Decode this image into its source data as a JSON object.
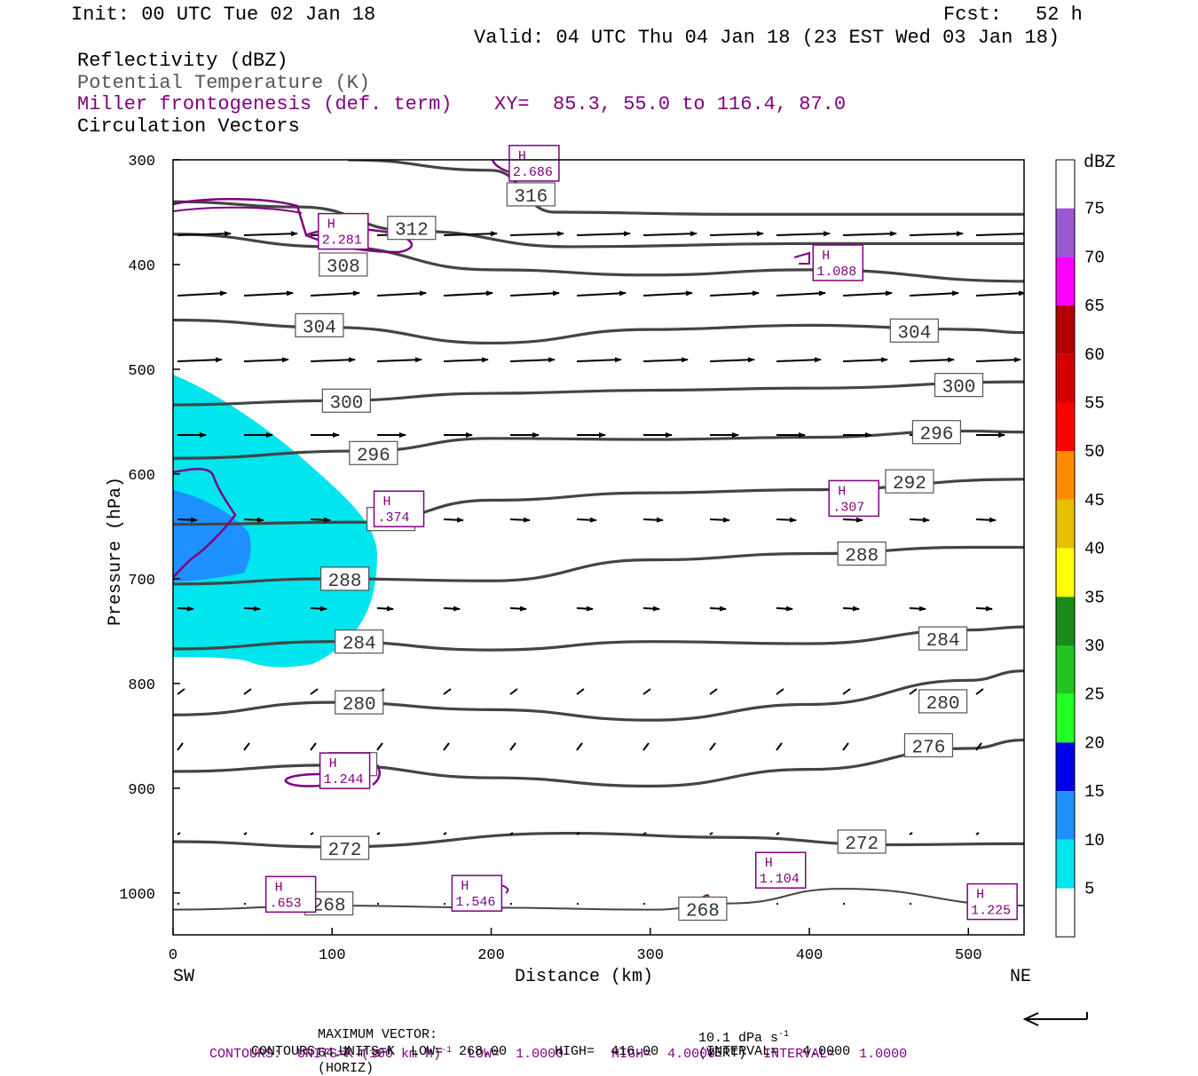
{
  "header": {
    "init": "Init: 00 UTC Tue 02 Jan 18",
    "fcst_label": "Fcst:",
    "fcst_value": "52 h",
    "valid": "Valid: 04 UTC Thu 04 Jan 18 (23 EST Wed 03 Jan 18)",
    "fields": {
      "reflectivity": "Reflectivity (dBZ)",
      "theta": "Potential Temperature (K)",
      "miller": "Miller frontogenesis (def. term)",
      "xy": "XY=  85.3, 55.0 to 116.4, 87.0",
      "vectors": "Circulation Vectors"
    }
  },
  "colors": {
    "purple": "#800080",
    "theta_line": "#444444",
    "reflectivity_5": "#00e5ee",
    "reflectivity_10": "#1e90ff"
  },
  "chart_data": {
    "type": "cross-section",
    "xlabel": "Distance (km)",
    "ylabel": "Pressure (hPa)",
    "xlim": [
      0,
      535
    ],
    "ylim": [
      1040,
      300
    ],
    "x_ticks": [
      "0",
      "100",
      "200",
      "300",
      "400",
      "500"
    ],
    "y_ticks": [
      "300",
      "400",
      "500",
      "600",
      "700",
      "800",
      "900",
      "1000"
    ],
    "left_end": "SW",
    "right_end": "NE",
    "colorbar": {
      "unit": "dBZ",
      "levels": [
        "75",
        "70",
        "65",
        "60",
        "55",
        "50",
        "45",
        "40",
        "35",
        "30",
        "25",
        "20",
        "15",
        "10",
        "5"
      ],
      "colors": [
        "#ffffff",
        "#9b59d0",
        "#ff00ff",
        "#b00000",
        "#d40000",
        "#ff0000",
        "#ff8c00",
        "#e6c000",
        "#ffff00",
        "#1b8a1b",
        "#22c422",
        "#22ff22",
        "#0000e6",
        "#1e90ff",
        "#00e5ee",
        "#ffffff"
      ]
    },
    "theta_isentropes": [
      {
        "value": 268,
        "points": [
          [
            0,
            1016
          ],
          [
            100,
            1012
          ],
          [
            200,
            1014
          ],
          [
            300,
            1016
          ],
          [
            350,
            1010
          ],
          [
            420,
            996
          ],
          [
            535,
            1012
          ]
        ],
        "labels": [
          [
            98,
            1010
          ],
          [
            333,
            1015
          ]
        ]
      },
      {
        "value": 272,
        "points": [
          [
            0,
            951
          ],
          [
            100,
            956
          ],
          [
            250,
            943
          ],
          [
            350,
            947
          ],
          [
            450,
            954
          ],
          [
            535,
            953
          ]
        ],
        "labels": [
          [
            108,
            957
          ],
          [
            433,
            951
          ]
        ]
      },
      {
        "value": 276,
        "points": [
          [
            0,
            884
          ],
          [
            100,
            878
          ],
          [
            200,
            890
          ],
          [
            300,
            898
          ],
          [
            400,
            882
          ],
          [
            500,
            862
          ],
          [
            535,
            854
          ]
        ],
        "labels": [
          [
            113,
            877
          ],
          [
            475,
            859
          ]
        ]
      },
      {
        "value": 280,
        "points": [
          [
            0,
            830
          ],
          [
            100,
            818
          ],
          [
            200,
            825
          ],
          [
            300,
            835
          ],
          [
            400,
            820
          ],
          [
            500,
            797
          ],
          [
            535,
            788
          ]
        ],
        "labels": [
          [
            117,
            818
          ],
          [
            484,
            817
          ]
        ]
      },
      {
        "value": 284,
        "points": [
          [
            0,
            767
          ],
          [
            100,
            760
          ],
          [
            200,
            768
          ],
          [
            300,
            760
          ],
          [
            400,
            762
          ],
          [
            500,
            749
          ],
          [
            535,
            746
          ]
        ],
        "labels": [
          [
            117,
            760
          ],
          [
            484,
            757
          ]
        ]
      },
      {
        "value": 288,
        "points": [
          [
            0,
            705
          ],
          [
            100,
            700
          ],
          [
            200,
            702
          ],
          [
            300,
            682
          ],
          [
            400,
            676
          ],
          [
            500,
            670
          ],
          [
            535,
            670
          ]
        ],
        "labels": [
          [
            108,
            700
          ],
          [
            433,
            676
          ]
        ]
      },
      {
        "value": 292,
        "points": [
          [
            0,
            648
          ],
          [
            120,
            646
          ],
          [
            200,
            625
          ],
          [
            300,
            618
          ],
          [
            400,
            615
          ],
          [
            535,
            605
          ]
        ],
        "labels": [
          [
            137,
            643
          ],
          [
            463,
            607
          ]
        ]
      },
      {
        "value": 296,
        "points": [
          [
            0,
            585
          ],
          [
            120,
            578
          ],
          [
            200,
            566
          ],
          [
            300,
            567
          ],
          [
            400,
            565
          ],
          [
            500,
            559
          ],
          [
            535,
            560
          ]
        ],
        "labels": [
          [
            126,
            580
          ],
          [
            480,
            560
          ]
        ]
      },
      {
        "value": 300,
        "points": [
          [
            0,
            534
          ],
          [
            100,
            530
          ],
          [
            200,
            523
          ],
          [
            300,
            520
          ],
          [
            400,
            518
          ],
          [
            535,
            512
          ]
        ],
        "labels": [
          [
            109,
            530
          ],
          [
            494,
            515
          ]
        ]
      },
      {
        "value": 304,
        "points": [
          [
            0,
            453
          ],
          [
            100,
            460
          ],
          [
            200,
            475
          ],
          [
            300,
            462
          ],
          [
            400,
            458
          ],
          [
            500,
            462
          ],
          [
            535,
            465
          ]
        ],
        "labels": [
          [
            92,
            458
          ],
          [
            466,
            463
          ]
        ]
      },
      {
        "value": 308,
        "points": [
          [
            0,
            371
          ],
          [
            100,
            383
          ],
          [
            200,
            405
          ],
          [
            300,
            410
          ],
          [
            400,
            405
          ],
          [
            535,
            416
          ]
        ],
        "labels": [
          [
            107,
            400
          ]
        ]
      },
      {
        "value": 312,
        "points": [
          [
            0,
            340
          ],
          [
            80,
            345
          ],
          [
            150,
            368
          ],
          [
            250,
            383
          ],
          [
            400,
            380
          ],
          [
            535,
            380
          ]
        ],
        "labels": [
          [
            150,
            365
          ]
        ]
      },
      {
        "value": 316,
        "points": [
          [
            110,
            300
          ],
          [
            200,
            310
          ],
          [
            240,
            350
          ],
          [
            350,
            352
          ],
          [
            535,
            352
          ]
        ],
        "labels": [
          [
            225,
            333
          ]
        ]
      }
    ],
    "frontogenesis_maxima": [
      {
        "label": "H",
        "value": "2.686",
        "x": 227,
        "p": 305
      },
      {
        "label": "H",
        "value": "2.281",
        "x": 107,
        "p": 370
      },
      {
        "label": "H",
        "value": "1.088",
        "x": 418,
        "p": 400
      },
      {
        "label": "H",
        "value": ".374",
        "x": 142,
        "p": 635
      },
      {
        "label": "H",
        "value": ".307",
        "x": 428,
        "p": 625
      },
      {
        "label": "H",
        "value": "1.244",
        "x": 108,
        "p": 885
      },
      {
        "label": "H",
        "value": "1.104",
        "x": 382,
        "p": 980
      },
      {
        "label": "H",
        "value": ".653",
        "x": 74,
        "p": 1003
      },
      {
        "label": "H",
        "value": "1.546",
        "x": 191,
        "p": 1002
      },
      {
        "label": "H",
        "value": "1.225",
        "x": 515,
        "p": 1010
      }
    ]
  },
  "footer": {
    "max_vector_label": "MAXIMUM VECTOR:",
    "max_vector_horiz": "64.7 m s",
    "horiz_tag": "(HORIZ)",
    "max_vector_vert": "10.1 dPa s",
    "vert_tag": "(VERT)",
    "contours1": "CONTOURS:  UNITS=K (100 km h)",
    "contours1_tail": "  LOW=  1.0000      HIGH=  4.0000      INTERVAL=   1.0000",
    "contours2": "CONTOURS:  UNITS=K  LOW=  268.00      HIGH=  416.00      INTERVAL=   4.0000",
    "exp": "-1"
  }
}
